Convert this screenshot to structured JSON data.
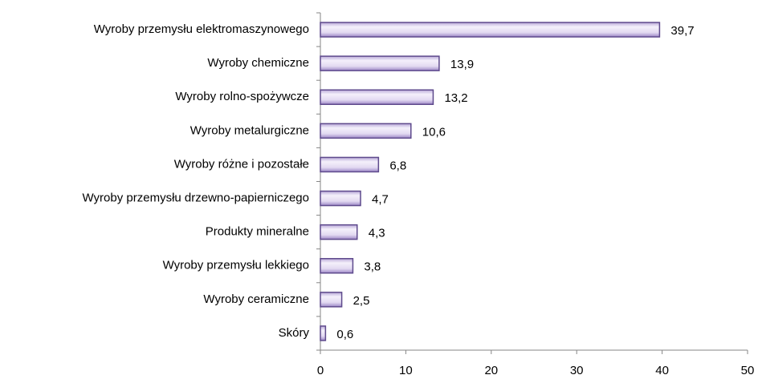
{
  "chart_data": {
    "type": "bar",
    "orientation": "horizontal",
    "categories": [
      "Wyroby przemysłu elektromaszynowego",
      "Wyroby chemiczne",
      "Wyroby rolno-spożywcze",
      "Wyroby metalurgiczne",
      "Wyroby różne i pozostałe",
      "Wyroby przemysłu drzewno-papierniczego",
      "Produkty mineralne",
      "Wyroby przemysłu lekkiego",
      "Wyroby ceramiczne",
      "Skóry"
    ],
    "values": [
      39.7,
      13.9,
      13.2,
      10.6,
      6.8,
      4.7,
      4.3,
      3.8,
      2.5,
      0.6
    ],
    "value_labels": [
      "39,7",
      "13,9",
      "13,2",
      "10,6",
      "6,8",
      "4,7",
      "4,3",
      "3,8",
      "2,5",
      "0,6"
    ],
    "color": "#e4dcf2",
    "xlim": [
      0,
      50
    ],
    "xticks": [
      0,
      10,
      20,
      30,
      40,
      50
    ],
    "grid": false
  }
}
